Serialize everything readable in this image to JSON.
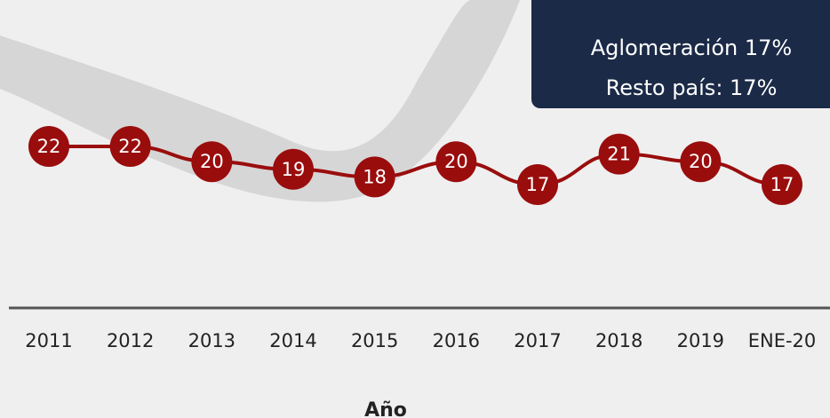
{
  "chart_data": {
    "type": "line",
    "categories": [
      "2011",
      "2012",
      "2013",
      "2014",
      "2015",
      "2016",
      "2017",
      "2018",
      "2019",
      "ENE-20"
    ],
    "values": [
      22,
      22,
      20,
      19,
      18,
      20,
      17,
      21,
      20,
      17
    ],
    "color": "#9a0d0d",
    "xlabel": "Año",
    "annotations": [
      "Aglomeración 17%",
      "Resto país: 17%"
    ]
  }
}
